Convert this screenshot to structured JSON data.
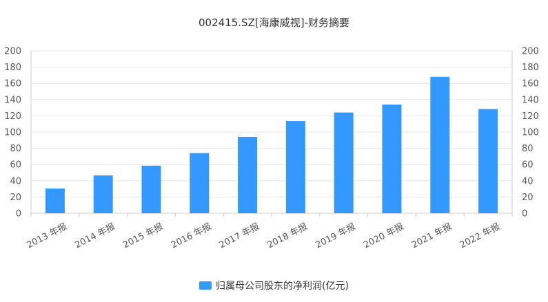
{
  "chart_data": {
    "type": "bar",
    "title": "002415.SZ[海康威视]-财务摘要",
    "categories": [
      "2013 年报",
      "2014 年报",
      "2015 年报",
      "2016 年报",
      "2017 年报",
      "2018 年报",
      "2019 年报",
      "2020 年报",
      "2021 年报",
      "2022 年报"
    ],
    "series": [
      {
        "name": "归属母公司股东的净利润(亿元)",
        "color": "#3399ff",
        "values": [
          30.4,
          46.6,
          58.6,
          74.2,
          94.1,
          113.5,
          124.1,
          133.9,
          168.0,
          128.4
        ]
      }
    ],
    "ylim": [
      0,
      200
    ],
    "yticks": [
      0,
      20,
      40,
      60,
      80,
      100,
      120,
      140,
      160,
      180,
      200
    ],
    "right_axis": true,
    "grid": true,
    "legend": "bottom-center"
  }
}
